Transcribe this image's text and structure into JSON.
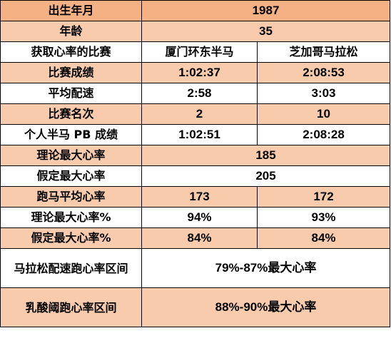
{
  "colors": {
    "header": "#F4B183",
    "shaded": "#F8CBAD",
    "plain": "#FFFFFF",
    "border": "#000000"
  },
  "rows": [
    {
      "label": "出生年月",
      "value": "1987"
    },
    {
      "label": "年龄",
      "value": "35"
    },
    {
      "label": "获取心率的比赛",
      "a": "厦门环东半马",
      "b": "芝加哥马拉松"
    },
    {
      "label": "比赛成绩",
      "a": "1:02:37",
      "b": "2:08:53"
    },
    {
      "label": "平均配速",
      "a": "2:58",
      "b": "3:03"
    },
    {
      "label": "比赛名次",
      "a": "2",
      "b": "10"
    },
    {
      "label": "个人半马 PB 成绩",
      "a": "1:02:51",
      "b": "2:08:28"
    },
    {
      "label": "理论最大心率",
      "value": "185"
    },
    {
      "label": "假定最大心率",
      "value": "205"
    },
    {
      "label": "跑马平均心率",
      "a": "173",
      "b": "172"
    },
    {
      "label": "理论最大心率%",
      "a": "94%",
      "b": "93%"
    },
    {
      "label": "假定最大心率%",
      "a": "84%",
      "b": "84%"
    },
    {
      "label": "马拉松配速跑心率区间",
      "value": "79%-87%最大心率"
    },
    {
      "label": "乳酸阈跑心率区间",
      "value": "88%-90%最大心率"
    }
  ]
}
